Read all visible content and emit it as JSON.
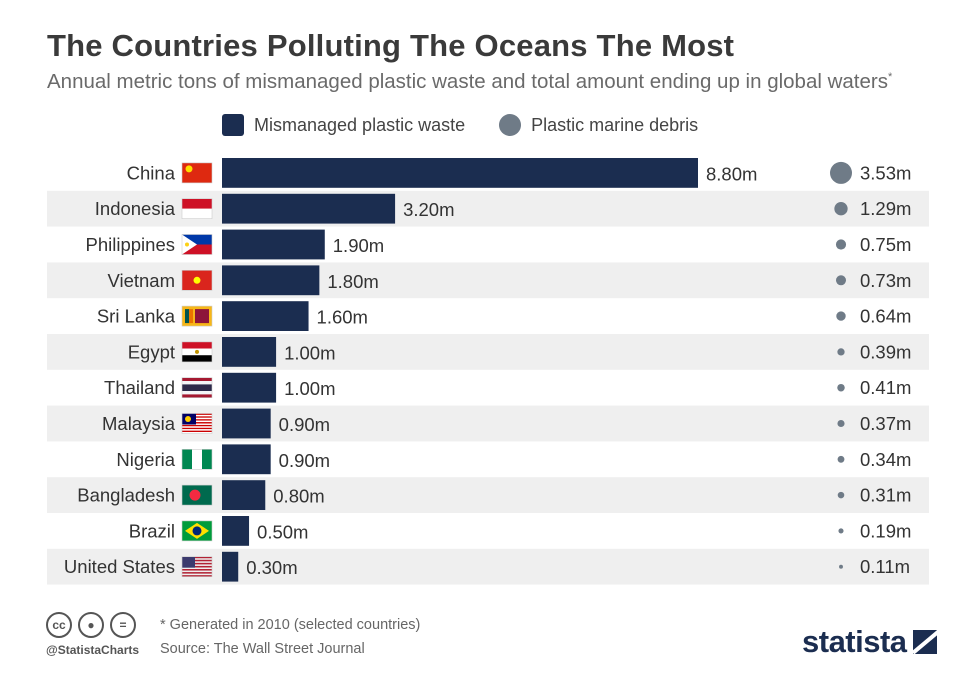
{
  "header": {
    "title": "The Countries Polluting The Oceans The Most",
    "subtitle": "Annual metric tons of mismanaged plastic waste and total amount ending up in global waters",
    "subtitle_mark": "*"
  },
  "legend": {
    "bar_label": "Mismanaged plastic waste",
    "dot_label": "Plastic marine debris"
  },
  "colors": {
    "bar": "#1b2d50",
    "dot": "#6f7b87",
    "stripe": "#efefef"
  },
  "chart_data": {
    "type": "bar",
    "orientation": "horizontal",
    "categories": [
      "China",
      "Indonesia",
      "Philippines",
      "Vietnam",
      "Sri Lanka",
      "Egypt",
      "Thailand",
      "Malaysia",
      "Nigeria",
      "Bangladesh",
      "Brazil",
      "United States"
    ],
    "flag_icons": [
      "china-flag-icon",
      "indonesia-flag-icon",
      "philippines-flag-icon",
      "vietnam-flag-icon",
      "sri-lanka-flag-icon",
      "egypt-flag-icon",
      "thailand-flag-icon",
      "malaysia-flag-icon",
      "nigeria-flag-icon",
      "bangladesh-flag-icon",
      "brazil-flag-icon",
      "united-states-flag-icon"
    ],
    "series": [
      {
        "name": "Mismanaged plastic waste",
        "values": [
          8.8,
          3.2,
          1.9,
          1.8,
          1.6,
          1.0,
          1.0,
          0.9,
          0.9,
          0.8,
          0.5,
          0.3
        ],
        "labels": [
          "8.80m",
          "3.20m",
          "1.90m",
          "1.80m",
          "1.60m",
          "1.00m",
          "1.00m",
          "0.90m",
          "0.90m",
          "0.80m",
          "0.50m",
          "0.30m"
        ]
      },
      {
        "name": "Plastic marine debris",
        "values": [
          3.53,
          1.29,
          0.75,
          0.73,
          0.64,
          0.39,
          0.41,
          0.37,
          0.34,
          0.31,
          0.19,
          0.11
        ],
        "labels": [
          "3.53m",
          "1.29m",
          "0.75m",
          "0.73m",
          "0.64m",
          "0.39m",
          "0.41m",
          "0.37m",
          "0.34m",
          "0.31m",
          "0.19m",
          "0.11m"
        ]
      }
    ],
    "unit": "million metric tons",
    "xlim": [
      0,
      8.8
    ]
  },
  "footer": {
    "cc_icons": [
      "creative-commons-icon",
      "attribution-icon",
      "no-derivatives-icon"
    ],
    "handle": "@StatistaCharts",
    "note": "* Generated in 2010 (selected countries)",
    "source": "Source: The Wall Street Journal",
    "brand": "statista"
  }
}
